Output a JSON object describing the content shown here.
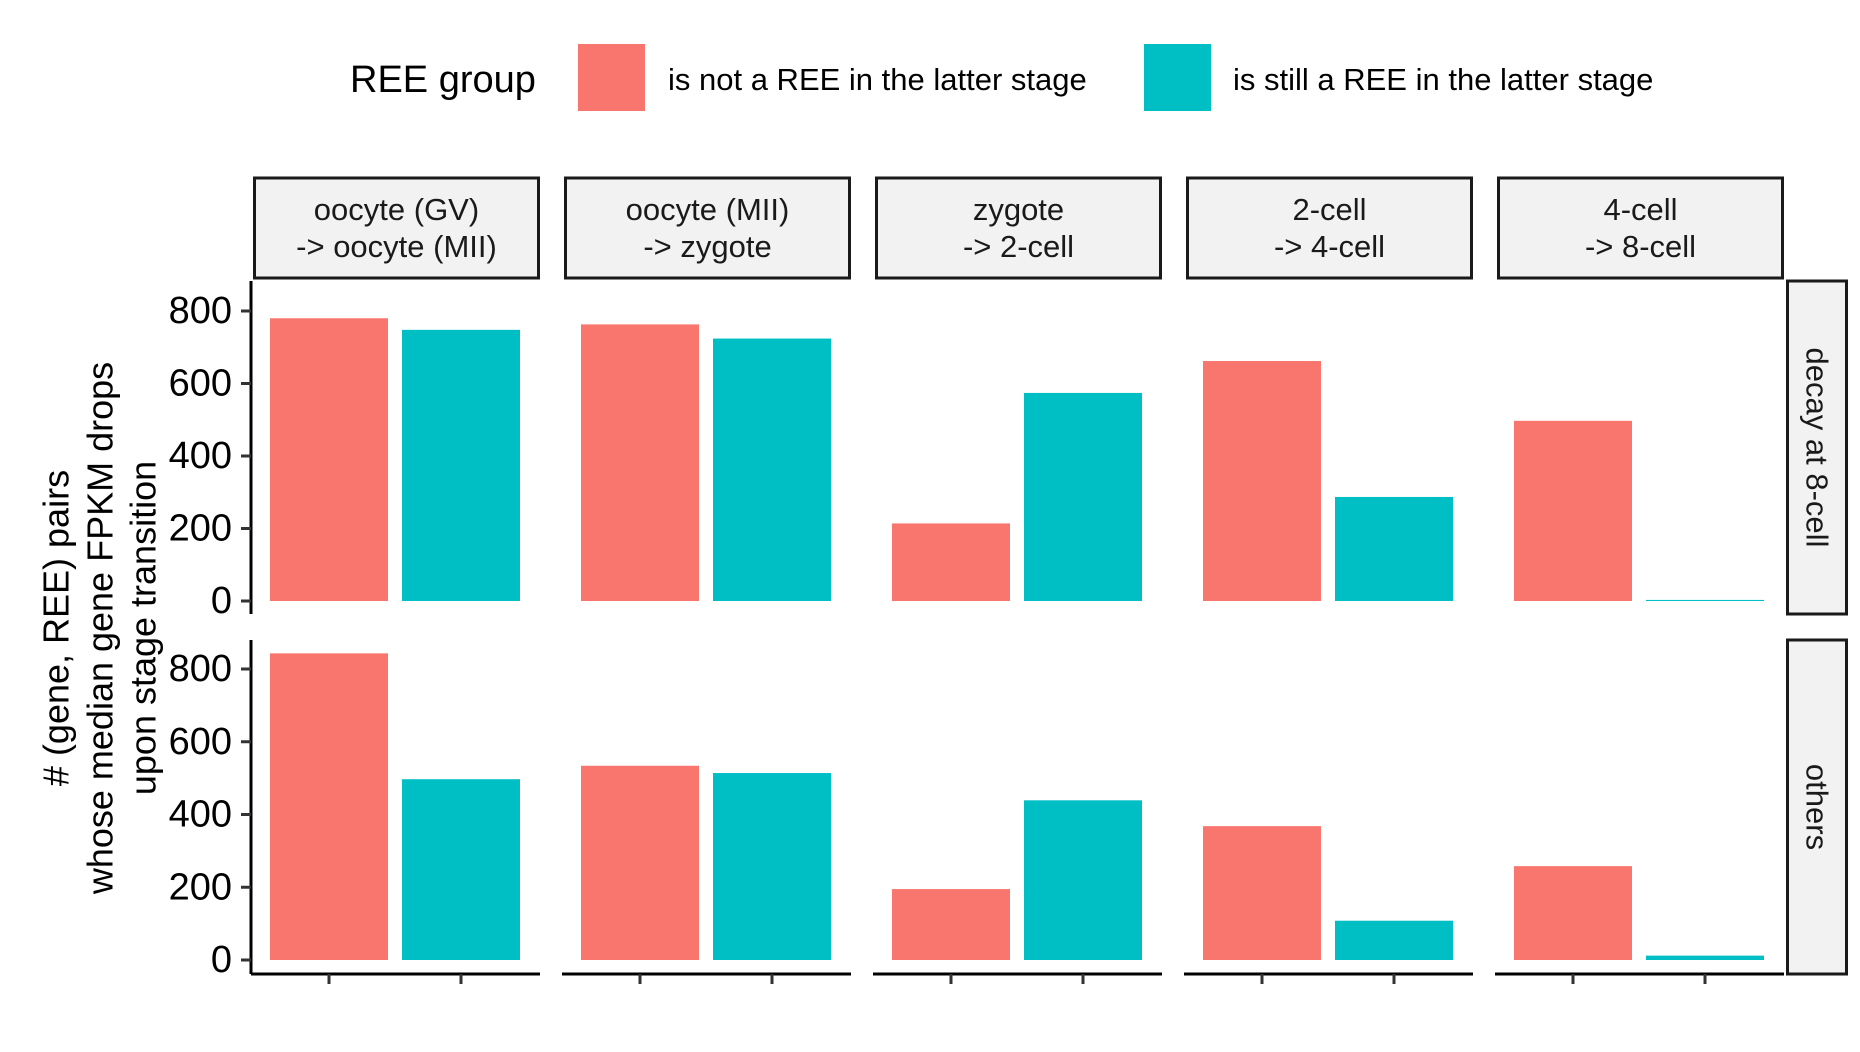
{
  "chart_data": {
    "type": "bar",
    "legend": {
      "title": "REE group",
      "placement": "top"
    },
    "series": [
      {
        "name": "is not a REE in the latter stage",
        "color": "#F8766D"
      },
      {
        "name": "is still a REE in the latter stage",
        "color": "#00BFC4"
      }
    ],
    "col_facets": [
      [
        "oocyte (GV)",
        "-> oocyte (MII)"
      ],
      [
        "oocyte (MII)",
        "-> zygote"
      ],
      [
        "zygote",
        "-> 2-cell"
      ],
      [
        "2-cell",
        "-> 4-cell"
      ],
      [
        "4-cell",
        "-> 8-cell"
      ]
    ],
    "row_facets": [
      "decay at 8-cell",
      "others"
    ],
    "values": [
      [
        [
          780,
          748
        ],
        [
          763,
          724
        ],
        [
          214,
          574
        ],
        [
          662,
          287
        ],
        [
          497,
          3
        ]
      ],
      [
        [
          843,
          497
        ],
        [
          534,
          514
        ],
        [
          195,
          439
        ],
        [
          368,
          108
        ],
        [
          258,
          12
        ]
      ]
    ],
    "ylabel": [
      "# (gene, REE) pairs",
      "whose median gene FPKM drops",
      "upon stage transition"
    ],
    "xlabel": "",
    "ylim": [
      0,
      880
    ],
    "yticks": [
      0,
      200,
      400,
      600,
      800
    ],
    "grid": false
  }
}
